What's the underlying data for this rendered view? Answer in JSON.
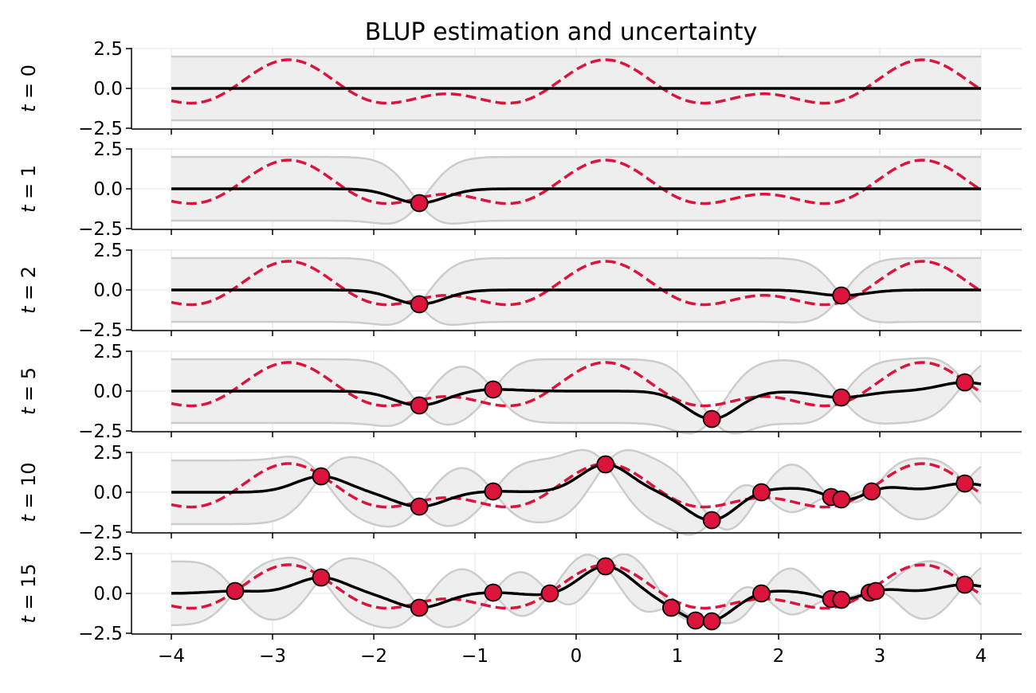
{
  "chart_data": {
    "type": "line",
    "title": "BLUP estimation and uncertainty",
    "xlim": [
      -4,
      4
    ],
    "ylim": [
      -2.5,
      2.5
    ],
    "x_ticks": [
      "−4",
      "−3",
      "−2",
      "−1",
      "0",
      "1",
      "2",
      "3",
      "4"
    ],
    "x_tick_values": [
      -4,
      -3,
      -2,
      -1,
      0,
      1,
      2,
      3,
      4
    ],
    "y_ticks": [
      "−2.5",
      "0.0",
      "2.5"
    ],
    "y_tick_values": [
      -2.5,
      0.0,
      2.5
    ],
    "grid": true,
    "colors": {
      "truth": "#dc143c",
      "estimate": "#000000",
      "band_fill": "#eeeeee",
      "band_edge": "#cccccc",
      "marker_fill": "#dc143c",
      "marker_edge": "#000000"
    },
    "panels": [
      {
        "label": "t = 0",
        "t": "0",
        "observations": []
      },
      {
        "label": "t = 1",
        "t": "1",
        "observations": [
          [
            -1.55,
            -0.9
          ]
        ]
      },
      {
        "label": "t = 2",
        "t": "2",
        "observations": [
          [
            -1.55,
            -0.9
          ],
          [
            2.62,
            -0.35
          ]
        ]
      },
      {
        "label": "t = 5",
        "t": "5",
        "observations": [
          [
            -1.55,
            -0.9
          ],
          [
            -0.82,
            0.1
          ],
          [
            1.34,
            -1.75
          ],
          [
            2.62,
            -0.4
          ],
          [
            3.84,
            0.55
          ]
        ]
      },
      {
        "label": "t = 10",
        "t": "10",
        "observations": [
          [
            -2.52,
            1.0
          ],
          [
            -1.55,
            -0.9
          ],
          [
            -0.82,
            0.05
          ],
          [
            0.29,
            1.75
          ],
          [
            1.34,
            -1.75
          ],
          [
            1.83,
            0.0
          ],
          [
            2.52,
            -0.3
          ],
          [
            2.62,
            -0.45
          ],
          [
            2.92,
            0.05
          ],
          [
            3.84,
            0.55
          ]
        ]
      },
      {
        "label": "t = 15",
        "t": "15",
        "observations": [
          [
            -3.37,
            0.15
          ],
          [
            -2.52,
            1.0
          ],
          [
            -1.55,
            -0.9
          ],
          [
            -0.82,
            0.05
          ],
          [
            -0.26,
            0.0
          ],
          [
            0.29,
            1.7
          ],
          [
            0.94,
            -0.9
          ],
          [
            1.18,
            -1.7
          ],
          [
            1.34,
            -1.75
          ],
          [
            1.83,
            0.0
          ],
          [
            2.52,
            -0.35
          ],
          [
            2.62,
            -0.4
          ],
          [
            2.9,
            0.05
          ],
          [
            2.96,
            0.15
          ],
          [
            3.84,
            0.55
          ]
        ]
      }
    ]
  }
}
